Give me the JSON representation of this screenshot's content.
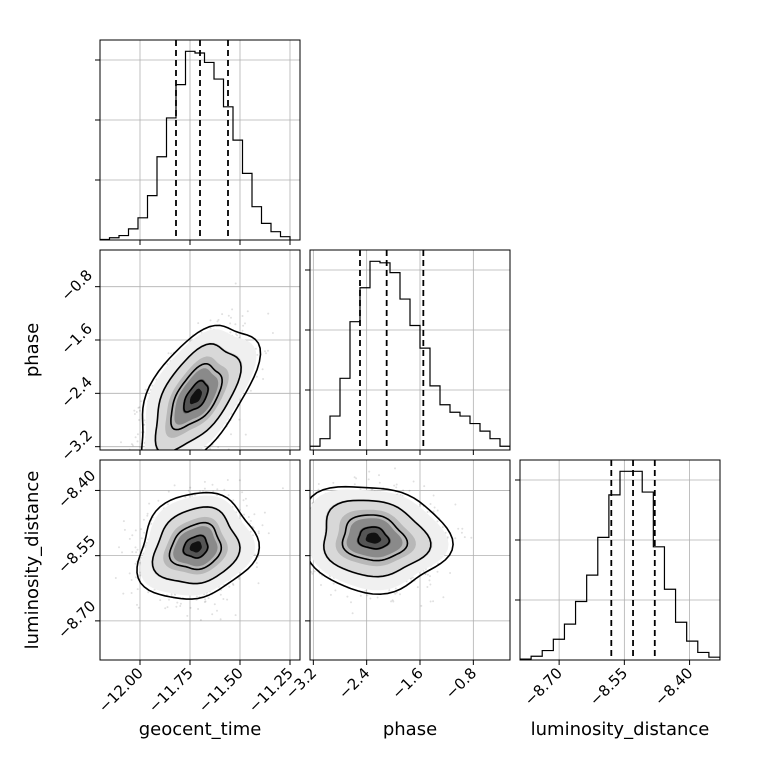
{
  "chart_data": {
    "type": "corner",
    "parameters": [
      "geocent_time",
      "phase",
      "luminosity_distance"
    ],
    "ranges": {
      "geocent_time": [
        -12.2,
        -11.2
      ],
      "phase": [
        -3.25,
        -0.25
      ],
      "luminosity_distance": [
        -8.79,
        -8.33
      ]
    },
    "ticks": {
      "geocent_time": [
        "-12.00",
        "-11.75",
        "-11.50",
        "-11.25"
      ],
      "phase": [
        "-3.2",
        "-2.4",
        "-1.6",
        "-0.8"
      ],
      "luminosity_distance": [
        "-8.70",
        "-8.55",
        "-8.40"
      ]
    },
    "quantiles": {
      "geocent_time": [
        -11.82,
        -11.7,
        -11.56
      ],
      "phase": [
        -2.5,
        -2.1,
        -1.55
      ],
      "luminosity_distance": [
        -8.58,
        -8.53,
        -8.48
      ]
    },
    "histograms": {
      "geocent_time": {
        "edges_range": [
          -12.2,
          -11.25
        ],
        "counts": [
          1,
          4,
          8,
          20,
          40,
          80,
          150,
          220,
          280,
          340,
          337,
          320,
          290,
          240,
          180,
          120,
          60,
          30,
          15,
          6
        ]
      },
      "phase": {
        "edges_range": [
          -3.25,
          -0.25
        ],
        "counts": [
          5,
          15,
          45,
          95,
          170,
          215,
          250,
          248,
          235,
          200,
          165,
          135,
          85,
          60,
          50,
          45,
          35,
          25,
          15,
          5
        ]
      },
      "luminosity_distance": {
        "edges_range": [
          -8.79,
          -8.33
        ],
        "counts": [
          1,
          4,
          10,
          22,
          38,
          62,
          90,
          130,
          175,
          200,
          200,
          178,
          120,
          75,
          40,
          20,
          8,
          3
        ]
      }
    },
    "density_2d": [
      {
        "x": "geocent_time",
        "y": "phase",
        "center": [
          -11.72,
          -2.45
        ],
        "spread": [
          0.12,
          0.45
        ],
        "correlation": 0.55
      },
      {
        "x": "geocent_time",
        "y": "luminosity_distance",
        "center": [
          -11.72,
          -8.53
        ],
        "spread": [
          0.12,
          0.05
        ],
        "correlation": 0.15
      },
      {
        "x": "phase",
        "y": "luminosity_distance",
        "center": [
          -2.3,
          -8.51
        ],
        "spread": [
          0.45,
          0.05
        ],
        "correlation": -0.1
      }
    ]
  }
}
